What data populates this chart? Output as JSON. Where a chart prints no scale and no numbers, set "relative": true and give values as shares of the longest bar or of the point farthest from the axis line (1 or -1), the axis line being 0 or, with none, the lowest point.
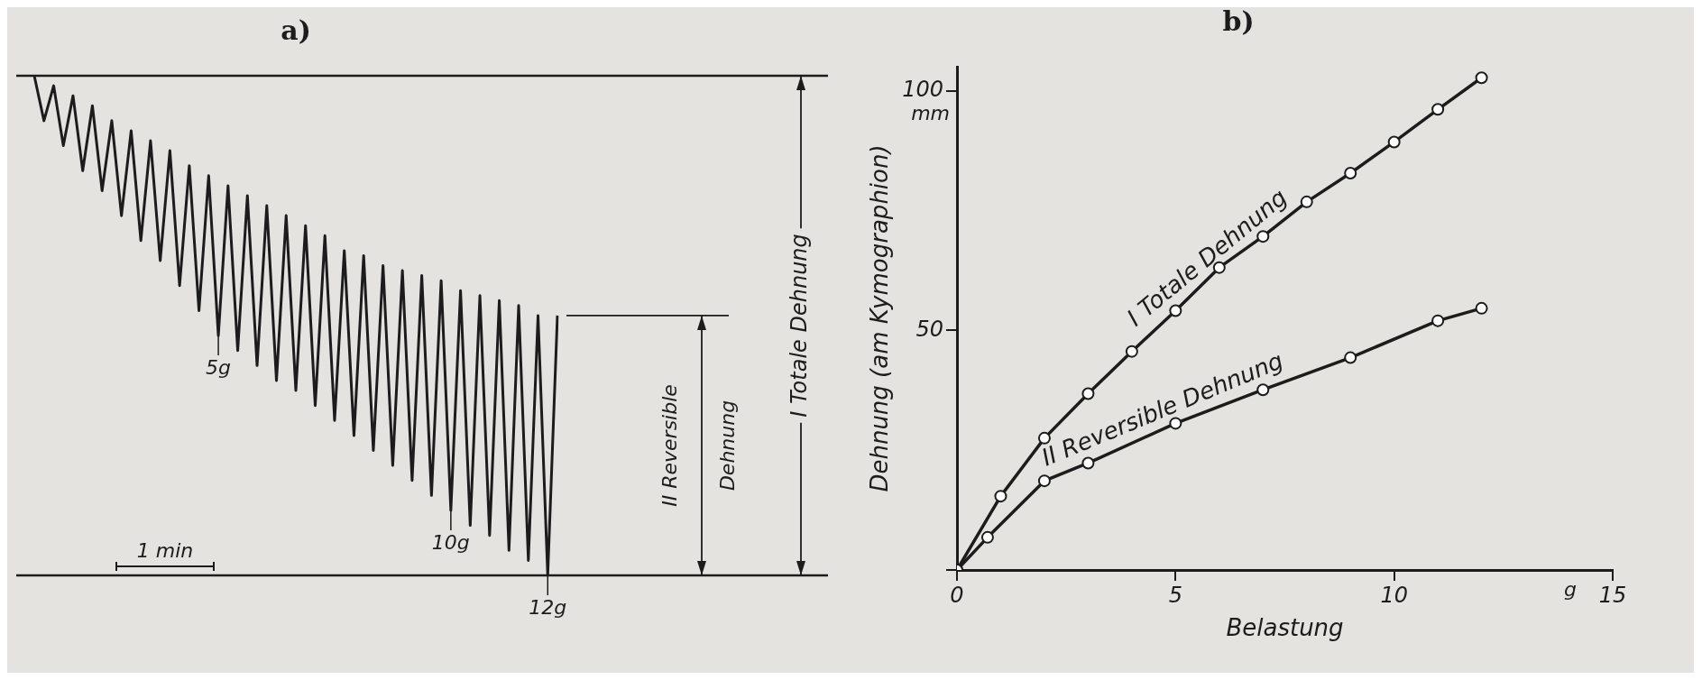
{
  "chart_data": [
    {
      "type": "line",
      "title": "a)",
      "relative": true,
      "color": "#1c1c1c",
      "categories": [
        null,
        null,
        null,
        null,
        null,
        null,
        null,
        null,
        null,
        null,
        null,
        null,
        null,
        null,
        null,
        null,
        null,
        null,
        null,
        null,
        null,
        null,
        null,
        null,
        null,
        null,
        null,
        null,
        null,
        null,
        null,
        null,
        null,
        null,
        null,
        null,
        null,
        null,
        null,
        null,
        null,
        null,
        null,
        null,
        null,
        null,
        null,
        null,
        null,
        null,
        null,
        null,
        null,
        null,
        null
      ],
      "values": [
        1.0,
        0.91,
        0.98,
        0.86,
        0.96,
        0.81,
        0.94,
        0.77,
        0.91,
        0.72,
        0.89,
        0.67,
        0.87,
        0.63,
        0.85,
        0.58,
        0.82,
        0.53,
        0.8,
        0.48,
        0.78,
        0.45,
        0.76,
        0.42,
        0.74,
        0.39,
        0.72,
        0.37,
        0.7,
        0.34,
        0.68,
        0.31,
        0.65,
        0.28,
        0.64,
        0.25,
        0.62,
        0.22,
        0.61,
        0.19,
        0.6,
        0.16,
        0.59,
        0.13,
        0.57,
        0.1,
        0.56,
        0.08,
        0.55,
        0.05,
        0.54,
        0.03,
        0.52,
        0.0,
        0.52
      ],
      "ref_lines": [
        {
          "axis": "y",
          "value": 1
        },
        {
          "axis": "y",
          "value": 0
        }
      ],
      "annotations": [
        "I Totale Dehnung",
        "II Reversible Dehnung",
        "1 min",
        "5g",
        "10g",
        "12g"
      ],
      "marker": "none",
      "legend": false
    },
    {
      "type": "line",
      "title": "b)",
      "xlabel": "Belastung",
      "ylabel": "Dehnung (am Kymographion)",
      "xlim": [
        0,
        15
      ],
      "xticks": [
        0,
        5,
        10,
        15
      ],
      "ylim": [
        0,
        105
      ],
      "yticks": [
        {
          "value": 0,
          "label": null
        },
        50,
        100
      ],
      "series": [
        {
          "name": "I Totale Dehnung",
          "color": "#1c1c1c",
          "x": [
            0,
            1,
            2,
            3,
            4,
            5,
            6,
            7,
            8,
            9,
            10,
            11,
            12
          ],
          "values": [
            0,
            15.4,
            27.5,
            36.8,
            45.6,
            54.1,
            63.1,
            69.6,
            76.8,
            82.8,
            89.3,
            96.1,
            102.7
          ]
        },
        {
          "name": "II Reversible Dehnung",
          "color": "#1c1c1c",
          "x": [
            0,
            0.7,
            2,
            3,
            5,
            7,
            9,
            11,
            12
          ],
          "values": [
            0,
            6.8,
            18.6,
            22.3,
            30.6,
            37.6,
            44.3,
            52.0,
            54.6
          ]
        }
      ],
      "annotations": [
        "mm",
        "g"
      ],
      "marker": "circle",
      "legend": false
    }
  ]
}
